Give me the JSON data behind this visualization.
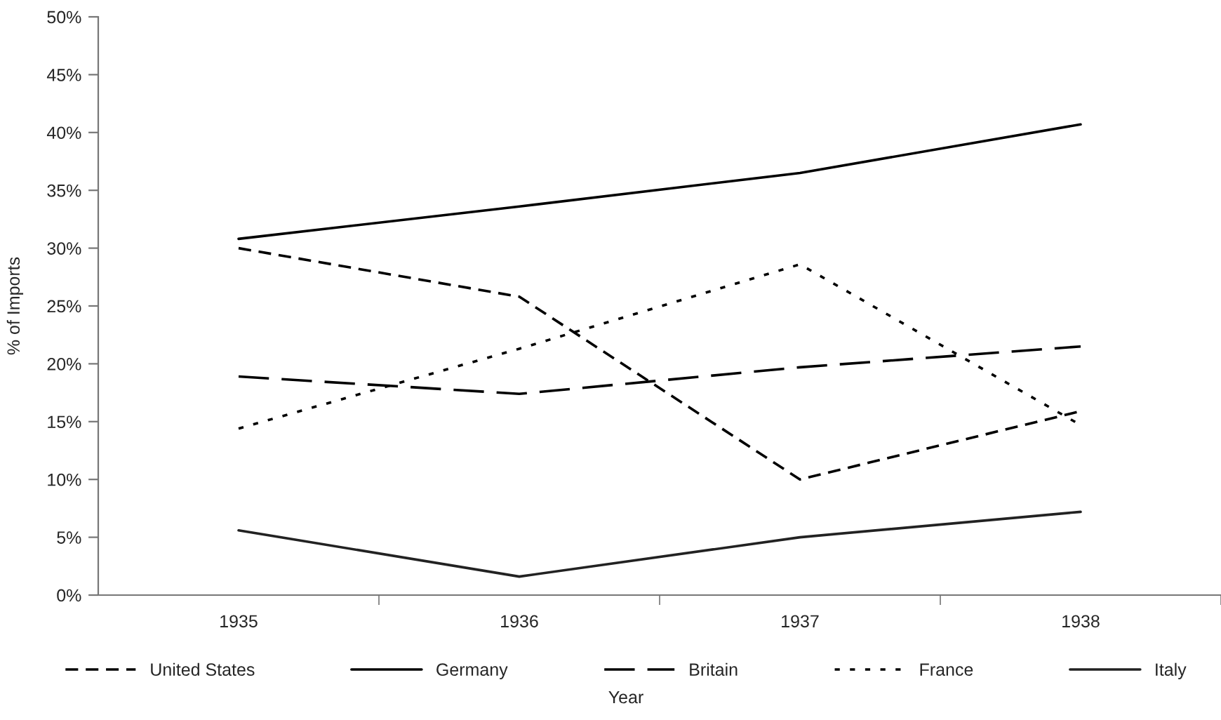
{
  "chart_data": {
    "type": "line",
    "xlabel": "Year",
    "ylabel": "% of Imports",
    "categories": [
      "1935",
      "1936",
      "1937",
      "1938"
    ],
    "series": [
      {
        "name": "United States",
        "color": "#000000",
        "line_style": "dashed",
        "values": [
          30.0,
          25.8,
          10.0,
          15.9
        ]
      },
      {
        "name": "Germany",
        "color": "#000000",
        "line_style": "solid",
        "values": [
          30.8,
          33.6,
          36.5,
          40.7
        ]
      },
      {
        "name": "Britain",
        "color": "#000000",
        "line_style": "longdash",
        "values": [
          18.9,
          17.4,
          19.7,
          21.5
        ]
      },
      {
        "name": "France",
        "color": "#000000",
        "line_style": "dotted",
        "values": [
          14.4,
          21.3,
          28.6,
          14.7
        ]
      },
      {
        "name": "Italy",
        "color": "#222222",
        "line_style": "solid",
        "values": [
          5.6,
          1.6,
          5.0,
          7.2
        ]
      }
    ],
    "ylim": [
      0,
      50
    ],
    "yticks": [
      {
        "value": 0,
        "label": "0%"
      },
      {
        "value": 5,
        "label": "5%"
      },
      {
        "value": 10,
        "label": "10%"
      },
      {
        "value": 15,
        "label": "15%"
      },
      {
        "value": 20,
        "label": "20%"
      },
      {
        "value": 25,
        "label": "25%"
      },
      {
        "value": 30,
        "label": "30%"
      },
      {
        "value": 35,
        "label": "35%"
      },
      {
        "value": 40,
        "label": "40%"
      },
      {
        "value": 45,
        "label": "45%"
      },
      {
        "value": 50,
        "label": "50%"
      }
    ],
    "grid": false,
    "legend": "bottom",
    "marker": "none"
  }
}
